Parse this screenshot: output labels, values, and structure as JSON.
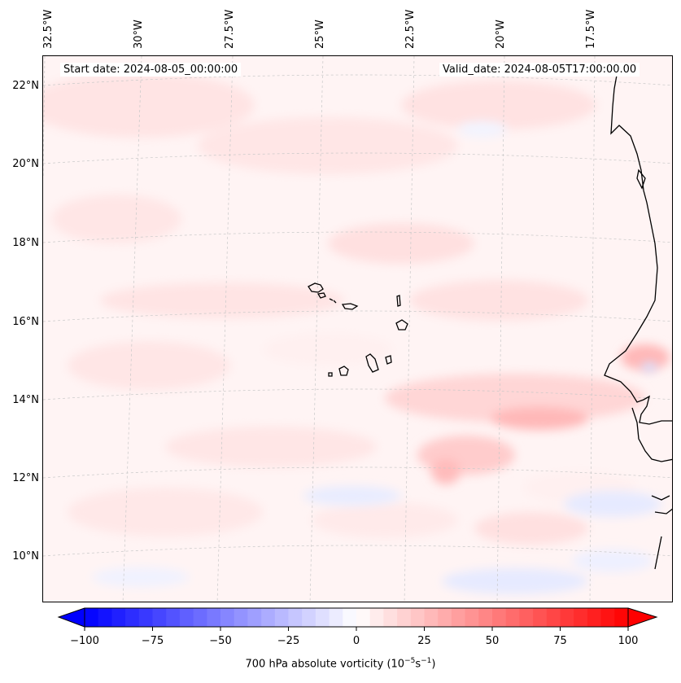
{
  "map": {
    "start_date_label": "Start date: 2024-08-05_00:00:00",
    "valid_date_label": "Valid_date: 2024-08-05T17:00:00.00",
    "lon_labels": [
      "32.5°W",
      "30°W",
      "27.5°W",
      "25°W",
      "22.5°W",
      "20°W",
      "17.5°W"
    ],
    "lat_labels": [
      "22°N",
      "20°N",
      "18°N",
      "16°N",
      "14°N",
      "12°N",
      "10°N"
    ],
    "field": "700 hPa absolute vorticity",
    "features": [
      "Cape Verde Islands",
      "West African coastline"
    ]
  },
  "colorbar": {
    "label_prefix": "700 hPa absolute vorticity (10",
    "label_exp1": "−5",
    "label_mid": "s",
    "label_exp2": "−1",
    "label_suffix": ")",
    "ticks": [
      "−100",
      "−75",
      "−50",
      "−25",
      "0",
      "25",
      "50",
      "75",
      "100"
    ],
    "min": -100,
    "max": 100,
    "low_color": "#0000ff",
    "mid_color": "#ffffff",
    "high_color": "#ff0000"
  }
}
